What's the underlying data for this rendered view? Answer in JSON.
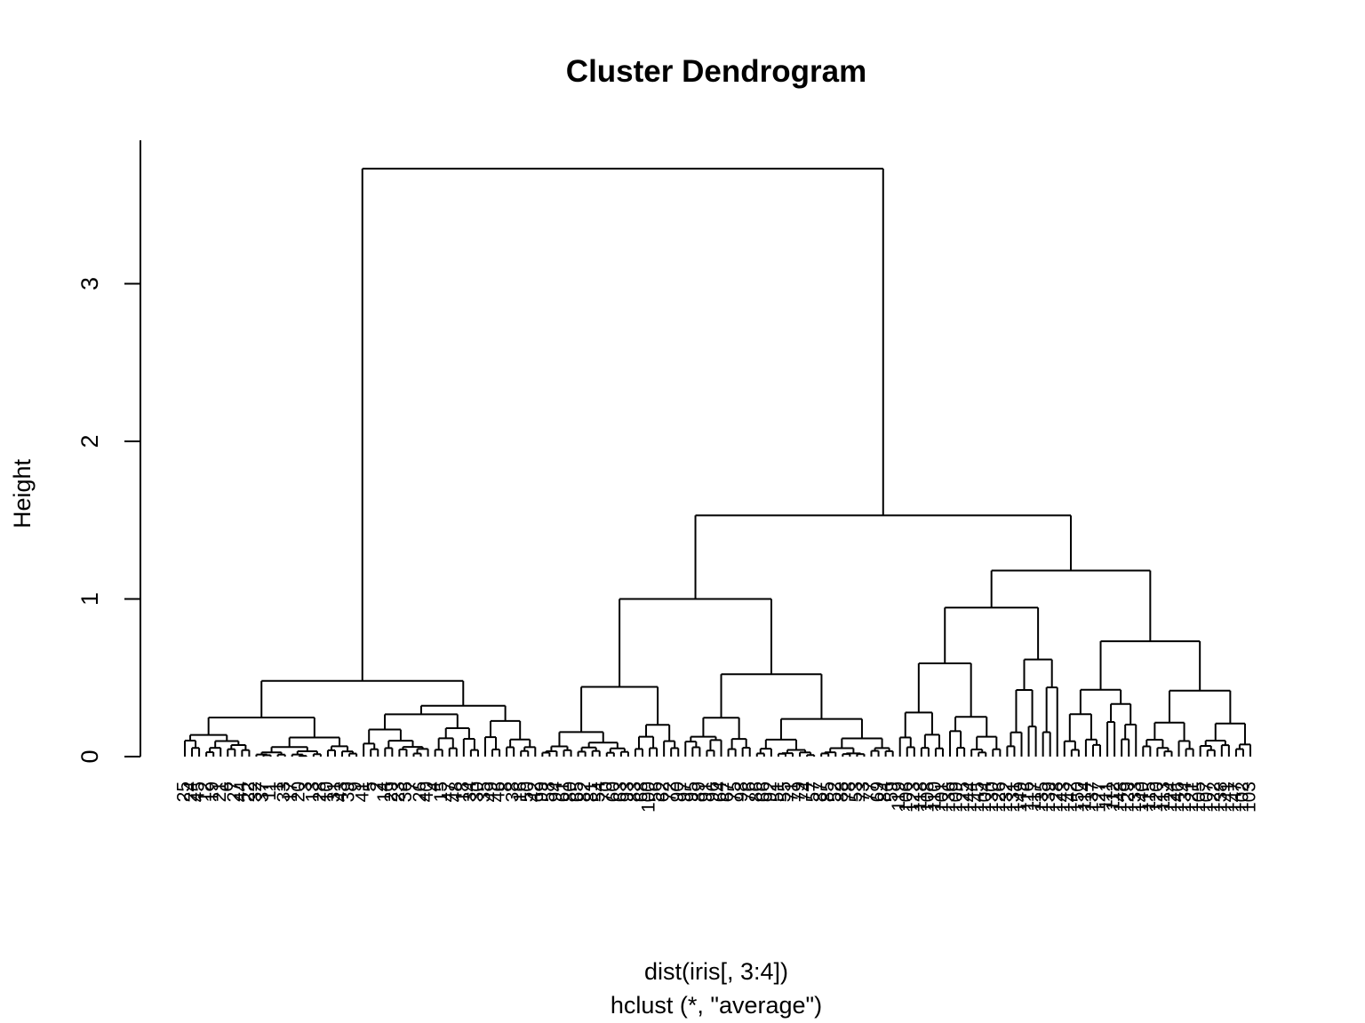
{
  "chart_data": {
    "type": "dendrogram",
    "title": "Cluster Dendrogram",
    "xlabel": "dist(iris[, 3:4])",
    "sub": "hclust (*, \"average\")",
    "ylabel": "Height",
    "ylim": [
      0,
      3.75
    ],
    "y_ticks": [
      0,
      1,
      2,
      3
    ],
    "y_tick_labels": [
      "0",
      "1",
      "2",
      "3"
    ],
    "root_height": 3.73,
    "top_merge": {
      "height": 3.73,
      "left_cluster_height": 0.48,
      "right_cluster_height": 1.53
    },
    "right_cluster": {
      "height": 1.53,
      "children_heights": [
        1.0,
        1.18
      ]
    },
    "leaf_count": 150,
    "leaf_labels": [
      "25",
      "24",
      "45",
      "12",
      "19",
      "21",
      "6",
      "27",
      "44",
      "22",
      "32",
      "37",
      "11",
      "1",
      "33",
      "17",
      "20",
      "3",
      "13",
      "28",
      "10",
      "31",
      "43",
      "39",
      "9",
      "41",
      "5",
      "2",
      "14",
      "29",
      "23",
      "36",
      "7",
      "26",
      "40",
      "4",
      "15",
      "47",
      "48",
      "18",
      "34",
      "30",
      "35",
      "49",
      "46",
      "8",
      "38",
      "16",
      "50",
      "42",
      "99",
      "58",
      "94",
      "61",
      "80",
      "65",
      "82",
      "81",
      "54",
      "70",
      "60",
      "63",
      "93",
      "83",
      "68",
      "100",
      "56",
      "62",
      "72",
      "90",
      "97",
      "95",
      "89",
      "91",
      "96",
      "64",
      "67",
      "75",
      "98",
      "76",
      "86",
      "66",
      "92",
      "51",
      "55",
      "71",
      "79",
      "74",
      "57",
      "87",
      "85",
      "52",
      "88",
      "78",
      "53",
      "73",
      "77",
      "69",
      "84",
      "59",
      "119",
      "106",
      "123",
      "118",
      "108",
      "110",
      "101",
      "136",
      "109",
      "125",
      "144",
      "145",
      "104",
      "130",
      "126",
      "132",
      "131",
      "149",
      "116",
      "117",
      "135",
      "139",
      "128",
      "143",
      "142",
      "150",
      "114",
      "137",
      "127",
      "111",
      "112",
      "148",
      "129",
      "133",
      "140",
      "115",
      "120",
      "113",
      "124",
      "146",
      "134",
      "121",
      "105",
      "107",
      "122",
      "138",
      "141",
      "147",
      "102",
      "103"
    ]
  }
}
